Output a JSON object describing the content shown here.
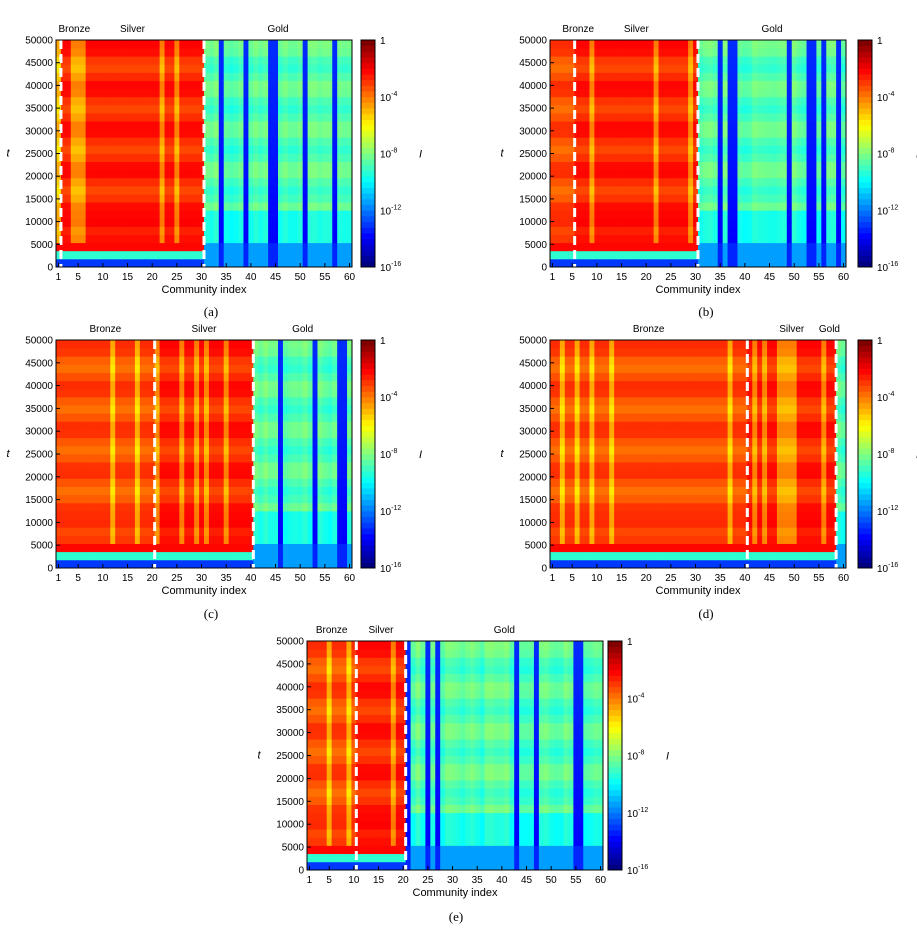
{
  "chart_data": [
    {
      "id": "a",
      "type": "heatmap",
      "caption": "(a)",
      "xlabel": "Community index",
      "ylabel": "t",
      "colorbar_label": "I",
      "x_ticks": [
        1,
        5,
        10,
        15,
        20,
        25,
        30,
        35,
        40,
        45,
        50,
        55,
        60
      ],
      "y_ticks": [
        0,
        5000,
        10000,
        15000,
        20000,
        25000,
        30000,
        35000,
        40000,
        45000,
        50000
      ],
      "ylim": [
        0,
        50000
      ],
      "communities": 60,
      "group_labels": [
        "Bronze",
        "Silver",
        "Gold"
      ],
      "group_bounds": [
        1,
        30
      ],
      "colorbar_ticks": [
        "1",
        "10-4",
        "10-8",
        "10-12",
        "10-16"
      ],
      "colorbar_range_log10": [
        -16,
        0
      ]
    },
    {
      "id": "b",
      "type": "heatmap",
      "caption": "(b)",
      "xlabel": "Community index",
      "ylabel": "t",
      "colorbar_label": "I",
      "x_ticks": [
        1,
        5,
        10,
        15,
        20,
        25,
        30,
        35,
        40,
        45,
        50,
        55,
        60
      ],
      "y_ticks": [
        0,
        5000,
        10000,
        15000,
        20000,
        25000,
        30000,
        35000,
        40000,
        45000,
        50000
      ],
      "ylim": [
        0,
        50000
      ],
      "communities": 60,
      "group_labels": [
        "Bronze",
        "Silver",
        "Gold"
      ],
      "group_bounds": [
        5,
        30
      ],
      "colorbar_ticks": [
        "1",
        "10-4",
        "10-8",
        "10-12",
        "10-16"
      ],
      "colorbar_range_log10": [
        -16,
        0
      ]
    },
    {
      "id": "c",
      "type": "heatmap",
      "caption": "(c)",
      "xlabel": "Community index",
      "ylabel": "t",
      "colorbar_label": "I",
      "x_ticks": [
        1,
        5,
        10,
        15,
        20,
        25,
        30,
        35,
        40,
        45,
        50,
        55,
        60
      ],
      "y_ticks": [
        0,
        5000,
        10000,
        15000,
        20000,
        25000,
        30000,
        35000,
        40000,
        45000,
        50000
      ],
      "ylim": [
        0,
        50000
      ],
      "communities": 60,
      "group_labels": [
        "Bronze",
        "Silver",
        "Gold"
      ],
      "group_bounds": [
        20,
        40
      ],
      "colorbar_ticks": [
        "1",
        "10-4",
        "10-8",
        "10-12",
        "10-16"
      ],
      "colorbar_range_log10": [
        -16,
        0
      ]
    },
    {
      "id": "d",
      "type": "heatmap",
      "caption": "(d)",
      "xlabel": "Community index",
      "ylabel": "t",
      "colorbar_label": "I",
      "x_ticks": [
        1,
        5,
        10,
        15,
        20,
        25,
        30,
        35,
        40,
        45,
        50,
        55,
        60
      ],
      "y_ticks": [
        0,
        5000,
        10000,
        15000,
        20000,
        25000,
        30000,
        35000,
        40000,
        45000,
        50000
      ],
      "ylim": [
        0,
        50000
      ],
      "communities": 60,
      "group_labels": [
        "Bronze",
        "Silver",
        "Gold"
      ],
      "group_bounds": [
        40,
        58
      ],
      "colorbar_ticks": [
        "1",
        "10-4",
        "10-8",
        "10-12",
        "10-16"
      ],
      "colorbar_range_log10": [
        -16,
        0
      ]
    },
    {
      "id": "e",
      "type": "heatmap",
      "caption": "(e)",
      "xlabel": "Community index",
      "ylabel": "t",
      "colorbar_label": "I",
      "x_ticks": [
        1,
        5,
        10,
        15,
        20,
        25,
        30,
        35,
        40,
        45,
        50,
        55,
        60
      ],
      "y_ticks": [
        0,
        5000,
        10000,
        15000,
        20000,
        25000,
        30000,
        35000,
        40000,
        45000,
        50000
      ],
      "ylim": [
        0,
        50000
      ],
      "communities": 60,
      "group_labels": [
        "Bronze",
        "Silver",
        "Gold"
      ],
      "group_bounds": [
        10,
        20
      ],
      "colorbar_ticks": [
        "1",
        "10-4",
        "10-8",
        "10-12",
        "10-16"
      ],
      "colorbar_range_log10": [
        -16,
        0
      ]
    }
  ]
}
